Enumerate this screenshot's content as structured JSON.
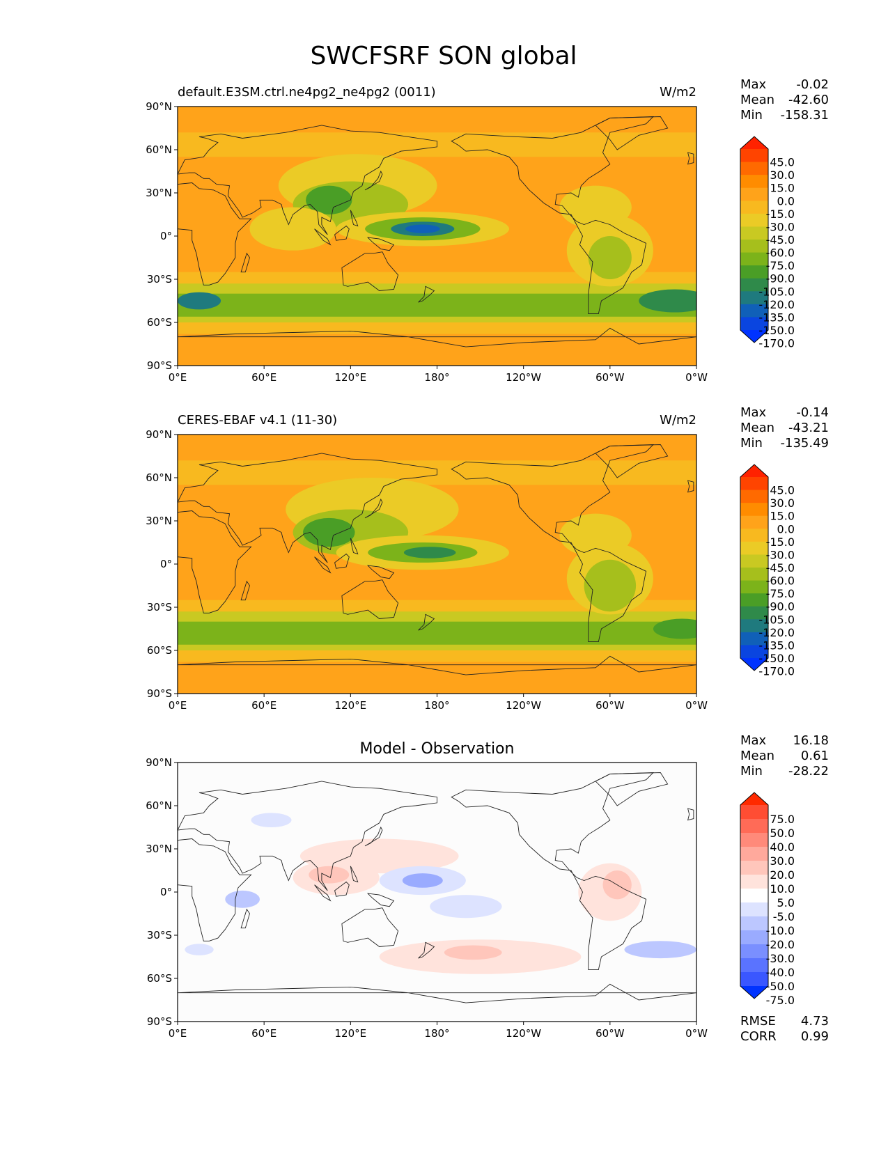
{
  "figure": {
    "title": "SWCFSRF SON global"
  },
  "panels": [
    {
      "id": "model",
      "title_left": "default.E3SM.ctrl.ne4pg2_ne4pg2 (0011)",
      "title_center": "",
      "units": "W/m2",
      "stats": [
        {
          "label": "Max",
          "value": "-0.02"
        },
        {
          "label": "Mean",
          "value": "-42.60"
        },
        {
          "label": "Min",
          "value": "-158.31"
        }
      ],
      "colorbar": {
        "labels": [
          "45.0",
          "30.0",
          "15.0",
          "0.0",
          "-15.0",
          "-30.0",
          "-45.0",
          "-60.0",
          "-75.0",
          "-90.0",
          "-105.0",
          "-120.0",
          "-135.0",
          "-150.0",
          "-170.0"
        ],
        "colors": [
          "#ff2200",
          "#ff4400",
          "#ff6a00",
          "#ff8c00",
          "#ffa31a",
          "#f8b91f",
          "#ebcb26",
          "#c9c922",
          "#a6bf1c",
          "#7cb31a",
          "#4a9e26",
          "#2f8a4a",
          "#1f7a7e",
          "#1060b8",
          "#0a45e0",
          "#0033ff"
        ]
      },
      "field": "model"
    },
    {
      "id": "obs",
      "title_left": "CERES-EBAF v4.1 (11-30)",
      "title_center": "",
      "units": "W/m2",
      "stats": [
        {
          "label": "Max",
          "value": "-0.14"
        },
        {
          "label": "Mean",
          "value": "-43.21"
        },
        {
          "label": "Min",
          "value": "-135.49"
        }
      ],
      "colorbar": {
        "labels": [
          "45.0",
          "30.0",
          "15.0",
          "0.0",
          "-15.0",
          "-30.0",
          "-45.0",
          "-60.0",
          "-75.0",
          "-90.0",
          "-105.0",
          "-120.0",
          "-135.0",
          "-150.0",
          "-170.0"
        ],
        "colors": [
          "#ff2200",
          "#ff4400",
          "#ff6a00",
          "#ff8c00",
          "#ffa31a",
          "#f8b91f",
          "#ebcb26",
          "#c9c922",
          "#a6bf1c",
          "#7cb31a",
          "#4a9e26",
          "#2f8a4a",
          "#1f7a7e",
          "#1060b8",
          "#0a45e0",
          "#0033ff"
        ]
      },
      "field": "obs"
    },
    {
      "id": "diff",
      "title_left": "",
      "title_center": "Model - Observation",
      "units": "",
      "stats": [
        {
          "label": "Max",
          "value": "16.18"
        },
        {
          "label": "Mean",
          "value": "0.61"
        },
        {
          "label": "Min",
          "value": "-28.22"
        }
      ],
      "extra_stats": [
        {
          "label": "RMSE",
          "value": "4.73"
        },
        {
          "label": "CORR",
          "value": "0.99"
        }
      ],
      "colorbar": {
        "labels": [
          "75.0",
          "50.0",
          "40.0",
          "30.0",
          "20.0",
          "10.0",
          "5.0",
          "-5.0",
          "-10.0",
          "-20.0",
          "-30.0",
          "-40.0",
          "-50.0",
          "-75.0"
        ],
        "colors": [
          "#ff2a00",
          "#ff4d33",
          "#ff6b57",
          "#ff8a7a",
          "#ffa99c",
          "#ffc6bb",
          "#ffe3dc",
          "#ffffff",
          "#dde3ff",
          "#bcc7ff",
          "#9aabff",
          "#7a8fff",
          "#5a73ff",
          "#3a57ff",
          "#0033ff"
        ]
      },
      "field": "diff"
    }
  ],
  "axes": {
    "lat_ticks": [
      "90°N",
      "60°N",
      "30°N",
      "0°",
      "30°S",
      "60°S",
      "90°S"
    ],
    "lat_values": [
      90,
      60,
      30,
      0,
      -30,
      -60,
      -90
    ],
    "lon_ticks": [
      "0°E",
      "60°E",
      "120°E",
      "180°",
      "120°W",
      "60°W",
      "0°W"
    ],
    "lon_values": [
      0,
      60,
      120,
      180,
      240,
      300,
      360
    ]
  },
  "map_colors": {
    "background_orange": "#ffa31a",
    "diff_background": "#fcfcfc",
    "coastline": "#222222"
  }
}
